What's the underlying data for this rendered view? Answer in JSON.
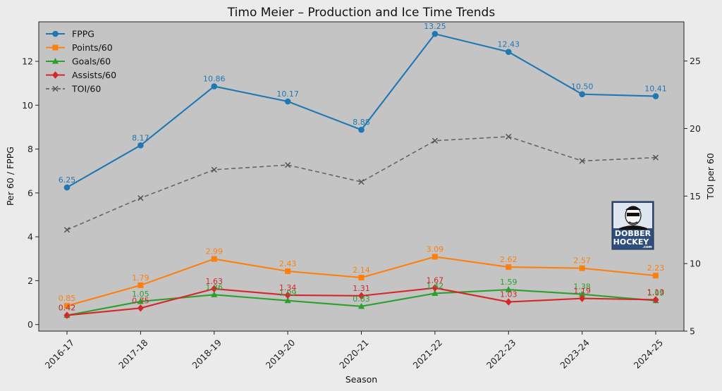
{
  "chart_data": {
    "type": "line",
    "title": "Timo Meier – Production and Ice Time Trends",
    "xlabel": "Season",
    "ylabel": "Per 60 / FPPG",
    "ylabel_right": "TOI per 60",
    "categories": [
      "2016-17",
      "2017-18",
      "2018-19",
      "2019-20",
      "2020-21",
      "2021-22",
      "2022-23",
      "2023-24",
      "2024-25"
    ],
    "ylim": [
      -0.3,
      13.8
    ],
    "yticks": [
      0,
      2,
      4,
      6,
      8,
      10,
      12
    ],
    "ylim_right": [
      5,
      27.9
    ],
    "yticks_right": [
      5,
      10,
      15,
      20,
      25
    ],
    "grid": false,
    "legend": "top-left",
    "series": [
      {
        "name": "FPPG",
        "axis": "left",
        "color": "#1f77b4",
        "marker": "circle",
        "dashed": false,
        "labeled": true,
        "values": [
          6.25,
          8.17,
          10.86,
          10.17,
          8.88,
          13.25,
          12.43,
          10.5,
          10.41
        ],
        "labels": [
          "6.25",
          "8.17",
          "10.86",
          "10.17",
          "8.88",
          "13.25",
          "12.43",
          "10.50",
          "10.41"
        ]
      },
      {
        "name": "Points/60",
        "axis": "left",
        "color": "#ff7f0e",
        "marker": "square",
        "dashed": false,
        "labeled": true,
        "values": [
          0.85,
          1.79,
          2.99,
          2.43,
          2.14,
          3.09,
          2.62,
          2.57,
          2.23
        ],
        "labels": [
          "0.85",
          "1.79",
          "2.99",
          "2.43",
          "2.14",
          "3.09",
          "2.62",
          "2.57",
          "2.23"
        ]
      },
      {
        "name": "Goals/60",
        "axis": "left",
        "color": "#2ca02c",
        "marker": "triangle",
        "dashed": false,
        "labeled": true,
        "values": [
          0.42,
          1.05,
          1.36,
          1.09,
          0.83,
          1.42,
          1.59,
          1.38,
          1.09
        ],
        "labels": [
          "0.42",
          "1.05",
          "1.36",
          "1.09",
          "0.83",
          "1.42",
          "1.59",
          "1.38",
          "1.09"
        ]
      },
      {
        "name": "Assists/60",
        "axis": "left",
        "color": "#d62728",
        "marker": "diamond",
        "dashed": false,
        "labeled": true,
        "values": [
          0.42,
          0.75,
          1.63,
          1.34,
          1.31,
          1.67,
          1.03,
          1.19,
          1.13
        ],
        "labels": [
          "0.42",
          "0.75",
          "1.63",
          "1.34",
          "1.31",
          "1.67",
          "1.03",
          "1.19",
          "1.13"
        ]
      },
      {
        "name": "TOI/60",
        "axis": "right",
        "color": "#555555",
        "marker": "x",
        "dashed": true,
        "labeled": false,
        "values": [
          12.5,
          14.85,
          16.95,
          17.3,
          16.05,
          19.1,
          19.4,
          17.6,
          17.85
        ]
      }
    ]
  },
  "logo": {
    "line1": "DOBBER",
    "line2": "HOCKEY",
    "sub": ".com"
  }
}
